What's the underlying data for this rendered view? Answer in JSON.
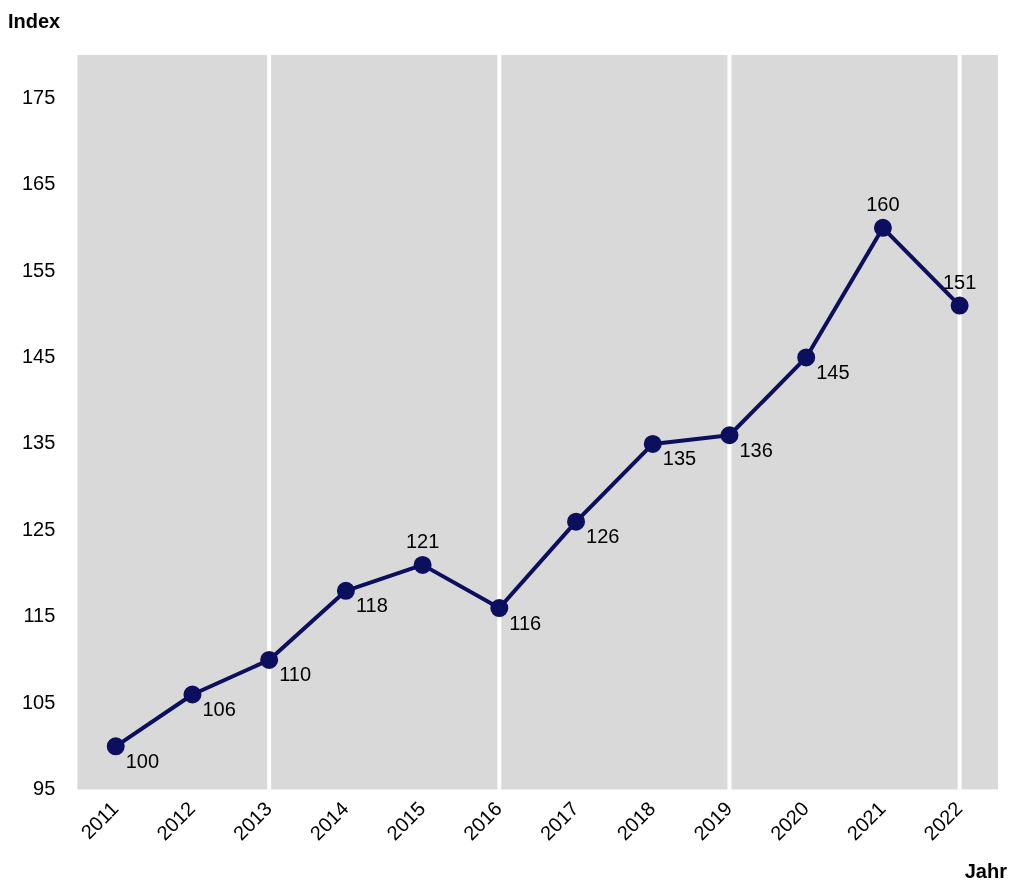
{
  "chart_data": {
    "type": "line",
    "xlabel": "Jahr",
    "ylabel": "Index",
    "categories": [
      "2011",
      "2012",
      "2013",
      "2014",
      "2015",
      "2016",
      "2017",
      "2018",
      "2019",
      "2020",
      "2021",
      "2022"
    ],
    "series": [
      {
        "color": "#0b0f5e",
        "values": [
          100,
          106,
          110,
          118,
          121,
          116,
          126,
          135,
          136,
          145,
          160,
          151
        ]
      }
    ],
    "ylim": [
      95,
      180
    ],
    "yticks": [
      95,
      105,
      115,
      125,
      135,
      145,
      155,
      165,
      175
    ],
    "ref_lines": [
      {
        "axis": "x",
        "value": "2013",
        "color": "#ffffff"
      },
      {
        "axis": "x",
        "value": "2016",
        "color": "#ffffff"
      },
      {
        "axis": "x",
        "value": "2019",
        "color": "#ffffff"
      },
      {
        "axis": "x",
        "value": "2022",
        "color": "#ffffff"
      }
    ],
    "data_labels": true,
    "grid": false,
    "legend": false,
    "marker": "circle",
    "line_style": "solid"
  }
}
